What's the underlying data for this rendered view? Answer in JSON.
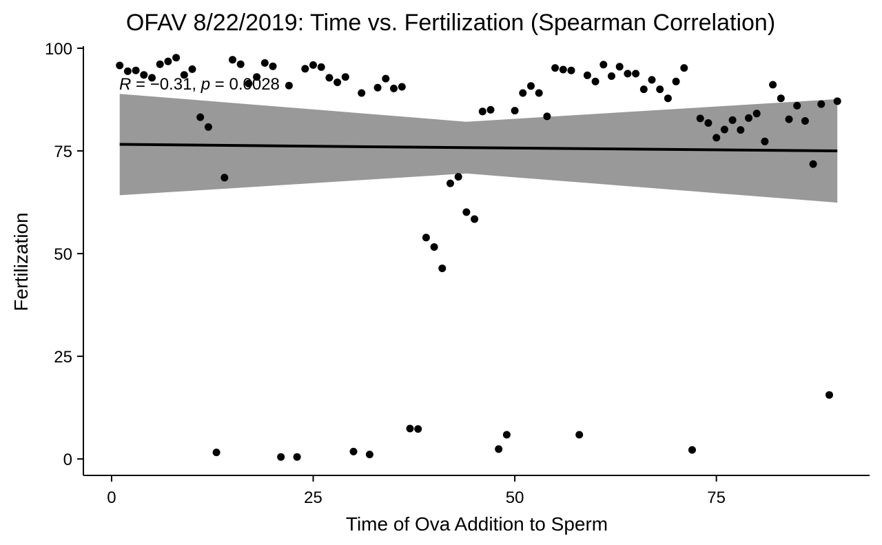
{
  "chart_data": {
    "type": "scatter",
    "title": "OFAV 8/22/2019: Time vs. Fertilization (Spearman Correlation)",
    "xlabel": "Time of Ova Addition to Sperm",
    "ylabel": "Fertilization",
    "xlim": [
      -3.5,
      94
    ],
    "ylim": [
      -4,
      100.5
    ],
    "x_ticks": [
      0,
      25,
      50,
      75
    ],
    "y_ticks": [
      0,
      25,
      50,
      75,
      100
    ],
    "grid": false,
    "legend": "none",
    "annotation": {
      "r_symbol": "R",
      "r_text": " = −0.31, ",
      "p_symbol": "p",
      "p_text": " = 0.0028"
    },
    "colors": {
      "points": "#000000",
      "regression_line": "#000000",
      "confidence_band": "#999999"
    },
    "regression": {
      "x": [
        1,
        44,
        90
      ],
      "y": [
        76.6,
        75.8,
        75.0
      ],
      "lower": [
        64.2,
        69.5,
        62.4
      ],
      "upper": [
        88.9,
        82.1,
        87.6
      ]
    },
    "points": {
      "x": [
        1,
        2,
        3,
        4,
        5,
        6,
        7,
        8,
        9,
        10,
        11,
        12,
        13,
        14,
        15,
        16,
        17,
        18,
        19,
        20,
        21,
        22,
        23,
        24,
        25,
        26,
        27,
        28,
        29,
        30,
        31,
        32,
        33,
        34,
        35,
        36,
        37,
        38,
        39,
        40,
        41,
        42,
        43,
        44,
        45,
        46,
        47,
        48,
        49,
        50,
        51,
        52,
        53,
        54,
        55,
        56,
        57,
        58,
        59,
        60,
        61,
        62,
        63,
        64,
        65,
        66,
        67,
        68,
        69,
        70,
        71,
        72,
        73,
        74,
        75,
        76,
        77,
        78,
        79,
        80,
        81,
        82,
        83,
        84,
        85,
        86,
        87,
        88,
        89,
        90
      ],
      "y": [
        95.8,
        94.4,
        94.6,
        93.5,
        92.8,
        96.1,
        96.8,
        97.7,
        93.5,
        94.9,
        83.2,
        80.8,
        1.6,
        68.5,
        97.2,
        96.1,
        91.4,
        93.0,
        96.4,
        95.6,
        0.5,
        90.9,
        0.5,
        95.0,
        95.9,
        95.4,
        92.8,
        91.7,
        93.0,
        1.8,
        89.1,
        1.1,
        90.4,
        92.6,
        90.2,
        90.6,
        7.4,
        7.3,
        53.9,
        51.6,
        46.4,
        67.1,
        68.7,
        60.1,
        58.4,
        84.6,
        85.0,
        2.4,
        5.9,
        84.8,
        89.1,
        90.8,
        89.1,
        83.4,
        95.2,
        94.8,
        94.6,
        5.9,
        93.4,
        91.9,
        96.0,
        93.2,
        95.5,
        93.8,
        93.8,
        90.0,
        92.3,
        90.0,
        87.8,
        91.9,
        95.2,
        2.2,
        82.9,
        81.8,
        78.2,
        80.2,
        82.5,
        80.1,
        83.0,
        84.1,
        77.3,
        91.1,
        87.8,
        82.7,
        86.0,
        82.3,
        71.8,
        86.4,
        15.6,
        87.1
      ]
    }
  }
}
